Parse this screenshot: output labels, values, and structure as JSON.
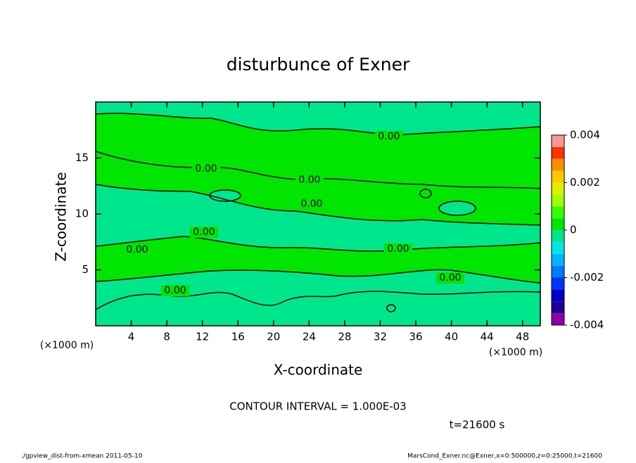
{
  "chart_data": {
    "type": "contour",
    "title": "disturbunce of Exner",
    "xlabel": "X-coordinate",
    "ylabel": "Z-coordinate",
    "x_unit": "(×1000 m)",
    "xlim": [
      0,
      50
    ],
    "xticks": [
      4,
      8,
      12,
      16,
      20,
      24,
      28,
      32,
      36,
      40,
      44,
      48
    ],
    "ylim": [
      0,
      20
    ],
    "yticks": [
      5,
      10,
      15
    ],
    "contour_level": {
      "value": 0,
      "label": "0.00"
    },
    "colorbar": {
      "lim": [
        -0.004,
        0.004
      ],
      "ticks": [
        0.004,
        0.002,
        0,
        -0.002,
        -0.004
      ],
      "colors": [
        "#8c00a8",
        "#1e0096",
        "#0000c8",
        "#0032ff",
        "#0078ff",
        "#00b4ff",
        "#00e6e6",
        "#00e68c",
        "#00e600",
        "#33ff00",
        "#a0ff00",
        "#dcf000",
        "#ffc800",
        "#ff8c00",
        "#ff3200",
        "#ff9696"
      ]
    },
    "contour_interval": "CONTOUR INTERVAL = 1.000E-03",
    "time_label": "t=21600 s",
    "footer_left": "./gpview_dist-from-xmean   2011-05-10",
    "footer_right": "MarsCond_Exner.nc@Exner,x=0:500000,z=0:25000,t=21600"
  }
}
